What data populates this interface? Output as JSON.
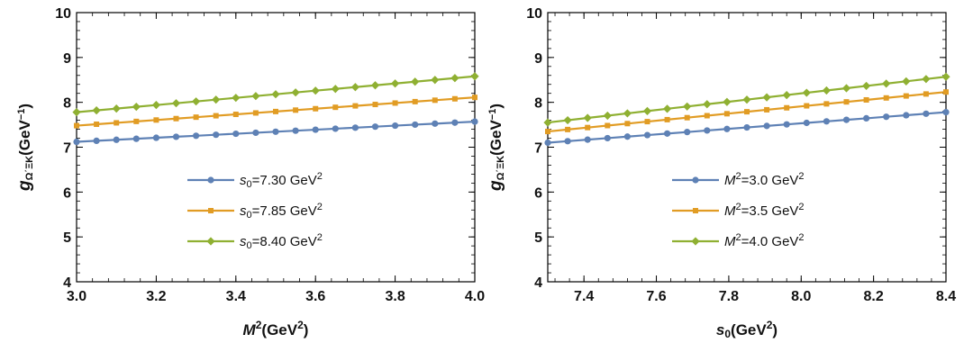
{
  "chart_data": [
    {
      "type": "line",
      "ylabel_base": "g",
      "ylabel_sub": "Ω΄ΞK",
      "ylabel_unit": "(GeV",
      "ylabel_unit_sup": "−1",
      "ylabel_tail": ")",
      "xlabel_base": "M",
      "xlabel_sup": "2",
      "xlabel_unit": "(GeV",
      "xlabel_unit_sup": "2",
      "xlabel_tail": ")",
      "xlim": [
        3.0,
        4.0
      ],
      "ylim": [
        4,
        10
      ],
      "xticks": [
        3.0,
        3.2,
        3.4,
        3.6,
        3.8,
        4.0
      ],
      "xtick_labels": [
        "3.0",
        "3.2",
        "3.4",
        "3.6",
        "3.8",
        "4.0"
      ],
      "yticks": [
        4,
        5,
        6,
        7,
        8,
        9,
        10
      ],
      "ytick_labels": [
        "4",
        "5",
        "6",
        "7",
        "8",
        "9",
        "10"
      ],
      "legend_position": "center-bottom",
      "series": [
        {
          "name_var": "s",
          "name_sub": "0",
          "name_value": "=7.30 GeV",
          "name_sup": "2",
          "color": "#5e81b5",
          "marker": "circle",
          "start": 7.12,
          "end": 7.57
        },
        {
          "name_var": "s",
          "name_sub": "0",
          "name_value": "=7.85 GeV",
          "name_sup": "2",
          "color": "#e19c24",
          "marker": "square",
          "start": 7.48,
          "end": 8.11
        },
        {
          "name_var": "s",
          "name_sub": "0",
          "name_value": "=8.40 GeV",
          "name_sup": "2",
          "color": "#8fb032",
          "marker": "diamond",
          "start": 7.78,
          "end": 8.58
        }
      ]
    },
    {
      "type": "line",
      "ylabel_base": "g",
      "ylabel_sub": "Ω΄ΞK",
      "ylabel_unit": "(GeV",
      "ylabel_unit_sup": "−1",
      "ylabel_tail": ")",
      "xlabel_base": "s",
      "xlabel_sub": "0",
      "xlabel_unit": "(GeV",
      "xlabel_unit_sup": "2",
      "xlabel_tail": ")",
      "xlim": [
        7.3,
        8.4
      ],
      "ylim": [
        4,
        10
      ],
      "xticks": [
        7.4,
        7.6,
        7.8,
        8.0,
        8.2,
        8.4
      ],
      "xtick_labels": [
        "7.4",
        "7.6",
        "7.8",
        "8.0",
        "8.2",
        "8.4"
      ],
      "yticks": [
        4,
        5,
        6,
        7,
        8,
        9,
        10
      ],
      "ytick_labels": [
        "4",
        "5",
        "6",
        "7",
        "8",
        "9",
        "10"
      ],
      "legend_position": "center-bottom",
      "series": [
        {
          "name_var": "M",
          "name_sup_var": "2",
          "name_value": "=3.0 GeV",
          "name_sup": "2",
          "color": "#5e81b5",
          "marker": "circle",
          "start": 7.1,
          "end": 7.78
        },
        {
          "name_var": "M",
          "name_sup_var": "2",
          "name_value": "=3.5 GeV",
          "name_sup": "2",
          "color": "#e19c24",
          "marker": "square",
          "start": 7.35,
          "end": 8.23
        },
        {
          "name_var": "M",
          "name_sup_var": "2",
          "name_value": "=4.0 GeV",
          "name_sup": "2",
          "color": "#8fb032",
          "marker": "diamond",
          "start": 7.55,
          "end": 8.57
        }
      ]
    }
  ]
}
